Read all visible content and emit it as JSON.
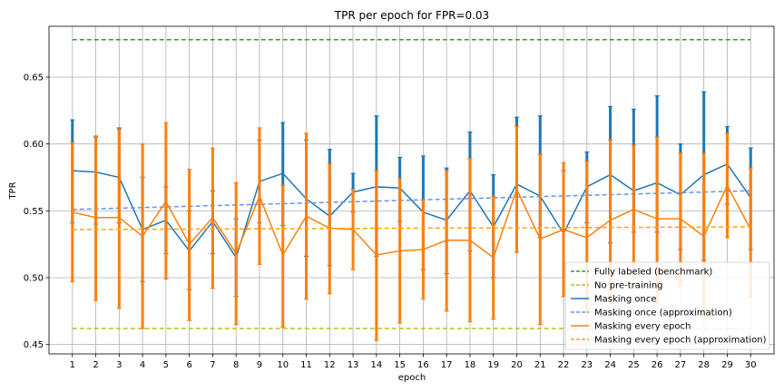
{
  "chart_data": {
    "type": "line",
    "title": "TPR per epoch for FPR=0.03",
    "xlabel": "epoch",
    "ylabel": "TPR",
    "x": [
      1,
      2,
      3,
      4,
      5,
      6,
      7,
      8,
      9,
      10,
      11,
      12,
      13,
      14,
      15,
      16,
      17,
      18,
      19,
      20,
      21,
      22,
      23,
      24,
      25,
      26,
      27,
      28,
      29,
      30
    ],
    "xlim": [
      0,
      31
    ],
    "ylim": [
      0.443,
      0.688
    ],
    "yticks": [
      0.45,
      0.5,
      0.55,
      0.6,
      0.65
    ],
    "ytick_labels": [
      "0.45",
      "0.50",
      "0.55",
      "0.60",
      "0.65"
    ],
    "grid": true,
    "legend_position": "lower-right",
    "series": [
      {
        "name": "Fully labeled (benchmark)",
        "color": "#2ca02c",
        "style": "dashed",
        "x": [
          1,
          30
        ],
        "values": [
          0.678,
          0.678
        ]
      },
      {
        "name": "No pre-training",
        "color": "#bcbd22",
        "style": "dashed",
        "x": [
          1,
          30
        ],
        "values": [
          0.462,
          0.462
        ]
      },
      {
        "name": "Masking once",
        "color": "#1f77b4",
        "style": "solid",
        "values": [
          0.58,
          0.579,
          0.575,
          0.536,
          0.543,
          0.52,
          0.542,
          0.515,
          0.572,
          0.578,
          0.559,
          0.546,
          0.564,
          0.568,
          0.567,
          0.549,
          0.543,
          0.565,
          0.538,
          0.57,
          0.561,
          0.533,
          0.568,
          0.577,
          0.565,
          0.571,
          0.562,
          0.577,
          0.585,
          0.56
        ],
        "error_low": [
          0.541,
          0.54,
          0.541,
          0.497,
          0.518,
          0.491,
          0.518,
          0.486,
          0.541,
          0.539,
          0.516,
          0.509,
          0.549,
          0.516,
          0.542,
          0.506,
          0.503,
          0.52,
          0.5,
          0.519,
          0.53,
          0.486,
          0.541,
          0.526,
          0.534,
          0.534,
          0.521,
          0.513,
          0.555,
          0.521
        ],
        "error_high": [
          0.618,
          0.605,
          0.612,
          0.575,
          0.568,
          0.55,
          0.565,
          0.544,
          0.603,
          0.616,
          0.603,
          0.596,
          0.578,
          0.621,
          0.59,
          0.591,
          0.582,
          0.609,
          0.577,
          0.62,
          0.621,
          0.58,
          0.594,
          0.628,
          0.626,
          0.636,
          0.6,
          0.639,
          0.613,
          0.597
        ]
      },
      {
        "name": "Masking once (approximation)",
        "color": "#6495ed",
        "style": "dashed",
        "x": [
          1,
          30
        ],
        "values": [
          0.551,
          0.565
        ]
      },
      {
        "name": "Masking every epoch",
        "color": "#ff7f0e",
        "style": "solid",
        "values": [
          0.549,
          0.545,
          0.545,
          0.531,
          0.557,
          0.525,
          0.545,
          0.518,
          0.561,
          0.517,
          0.546,
          0.537,
          0.536,
          0.517,
          0.52,
          0.521,
          0.528,
          0.528,
          0.515,
          0.566,
          0.529,
          0.536,
          0.53,
          0.543,
          0.551,
          0.544,
          0.544,
          0.531,
          0.569,
          0.536
        ],
        "error_low": [
          0.497,
          0.483,
          0.477,
          0.462,
          0.499,
          0.468,
          0.492,
          0.465,
          0.51,
          0.463,
          0.484,
          0.488,
          0.506,
          0.453,
          0.466,
          0.484,
          0.475,
          0.467,
          0.469,
          0.519,
          0.465,
          0.486,
          0.474,
          0.484,
          0.5,
          0.481,
          0.494,
          0.47,
          0.53,
          0.486
        ],
        "error_high": [
          0.601,
          0.606,
          0.611,
          0.6,
          0.616,
          0.581,
          0.597,
          0.571,
          0.612,
          0.569,
          0.608,
          0.585,
          0.566,
          0.58,
          0.574,
          0.558,
          0.58,
          0.589,
          0.561,
          0.613,
          0.592,
          0.586,
          0.587,
          0.603,
          0.599,
          0.605,
          0.593,
          0.593,
          0.608,
          0.582
        ]
      },
      {
        "name": "Masking every epoch (approximation)",
        "color": "#ffa500",
        "style": "dashed",
        "x": [
          1,
          30
        ],
        "values": [
          0.536,
          0.538
        ]
      }
    ]
  }
}
